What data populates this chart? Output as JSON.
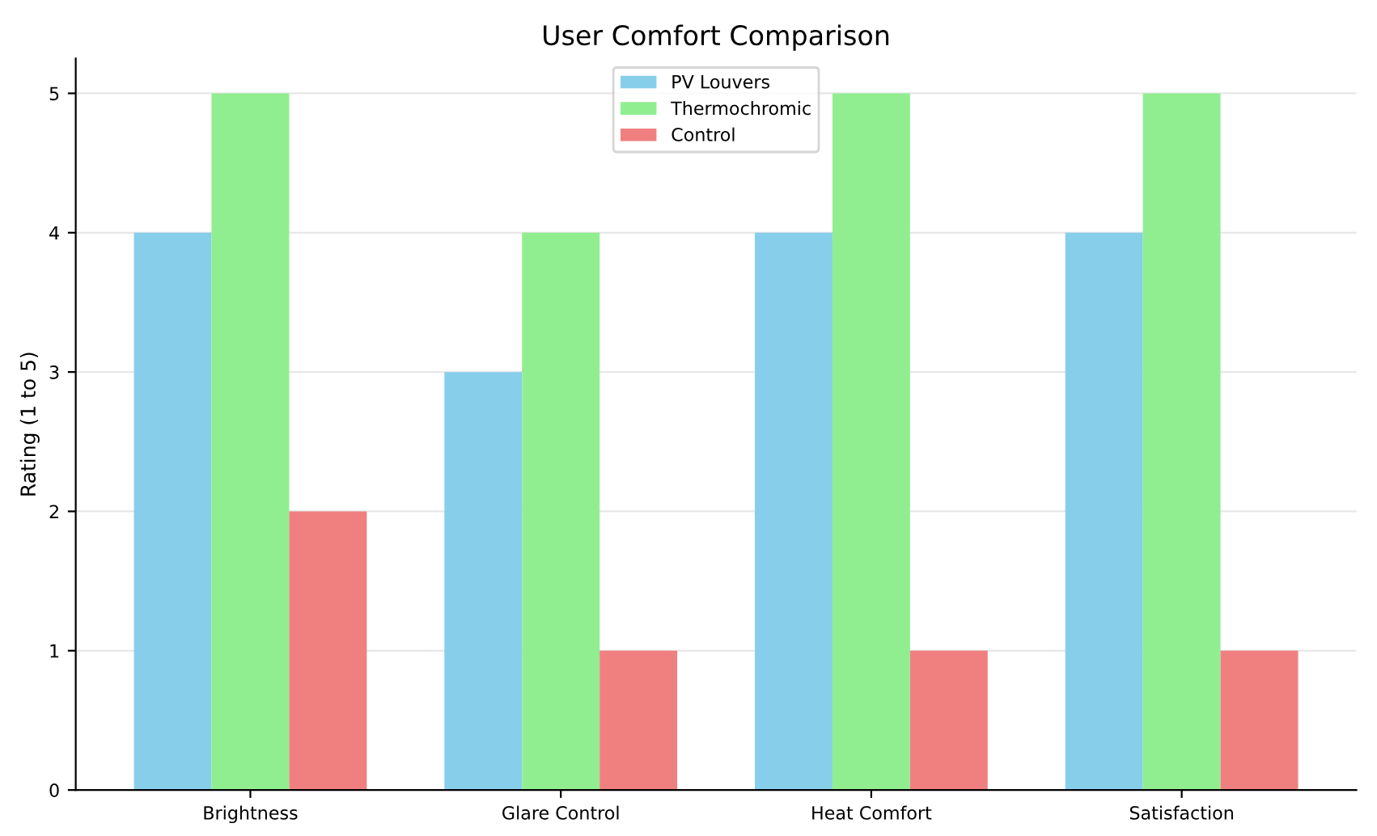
{
  "chart_data": {
    "type": "bar",
    "title": "User Comfort Comparison",
    "ylabel": "Rating (1 to 5)",
    "categories": [
      "Brightness",
      "Glare Control",
      "Heat Comfort",
      "Satisfaction"
    ],
    "series": [
      {
        "name": "PV Louvers",
        "color": "#87ceeb",
        "values": [
          4,
          3,
          4,
          4
        ]
      },
      {
        "name": "Thermochromic",
        "color": "#90ee90",
        "values": [
          5,
          4,
          5,
          5
        ]
      },
      {
        "name": "Control",
        "color": "#f08080",
        "values": [
          2,
          1,
          1,
          1
        ]
      }
    ],
    "ylim": [
      0,
      5.25
    ],
    "yticks": [
      0,
      1,
      2,
      3,
      4,
      5
    ],
    "grid": "y",
    "legend": "top"
  }
}
